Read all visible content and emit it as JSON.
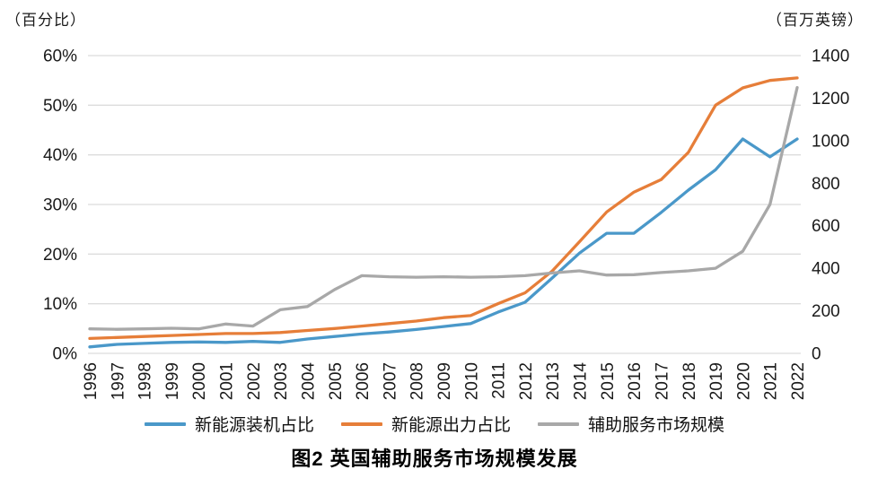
{
  "header": {
    "left_axis_title": "（百分比）",
    "right_axis_title": "（百万英镑）"
  },
  "caption": "图2  英国辅助服务市场规模发展",
  "colors": {
    "grid": "#dcdcdc",
    "tick_text": "#1a1a1a"
  },
  "chart_data": {
    "type": "line",
    "title": "图2 英国辅助服务市场规模发展",
    "grid": true,
    "legend_position": "bottom",
    "x_label_rotation": -90,
    "x": [
      "1996",
      "1997",
      "1998",
      "1999",
      "2000",
      "2001",
      "2002",
      "2003",
      "2004",
      "2005",
      "2006",
      "2007",
      "2008",
      "2009",
      "2010",
      "2011",
      "2012",
      "2013",
      "2014",
      "2015",
      "2016",
      "2017",
      "2018",
      "2019",
      "2020",
      "2021",
      "2022"
    ],
    "left_axis": {
      "label": "（百分比）",
      "min": 0,
      "max": 60,
      "ticks": [
        "0%",
        "10%",
        "20%",
        "30%",
        "40%",
        "50%",
        "60%"
      ]
    },
    "right_axis": {
      "label": "（百万英镑）",
      "min": 0,
      "max": 1400,
      "ticks": [
        "0",
        "200",
        "400",
        "600",
        "800",
        "1000",
        "1200",
        "1400"
      ]
    },
    "series": [
      {
        "id": "new-energy-installed-capacity-share",
        "name": "新能源装机占比",
        "axis": "left",
        "color": "#4a98c9",
        "values": [
          1.3,
          1.8,
          2.0,
          2.2,
          2.3,
          2.2,
          2.4,
          2.2,
          2.9,
          3.4,
          3.9,
          4.3,
          4.8,
          5.4,
          6.0,
          8.3,
          10.3,
          15.2,
          20.2,
          24.2,
          24.2,
          28.4,
          32.9,
          37.0,
          43.2,
          39.6,
          43.2
        ]
      },
      {
        "id": "new-energy-output-share",
        "name": "新能源出力占比",
        "axis": "left",
        "color": "#e67e39",
        "values": [
          3.0,
          3.2,
          3.4,
          3.6,
          3.8,
          4.0,
          4.0,
          4.2,
          4.6,
          5.0,
          5.5,
          6.0,
          6.5,
          7.2,
          7.6,
          10.0,
          12.2,
          16.6,
          22.5,
          28.5,
          32.5,
          35.0,
          40.5,
          50.0,
          53.5,
          55.0,
          55.5
        ]
      },
      {
        "id": "ancillary-services-market-size",
        "name": "辅助服务市场规模",
        "axis": "right",
        "color": "#a8a8a8",
        "values": [
          115,
          113,
          115,
          118,
          115,
          138,
          128,
          205,
          220,
          300,
          365,
          360,
          358,
          360,
          358,
          360,
          365,
          378,
          388,
          368,
          370,
          380,
          388,
          400,
          480,
          700,
          1250
        ]
      }
    ]
  }
}
